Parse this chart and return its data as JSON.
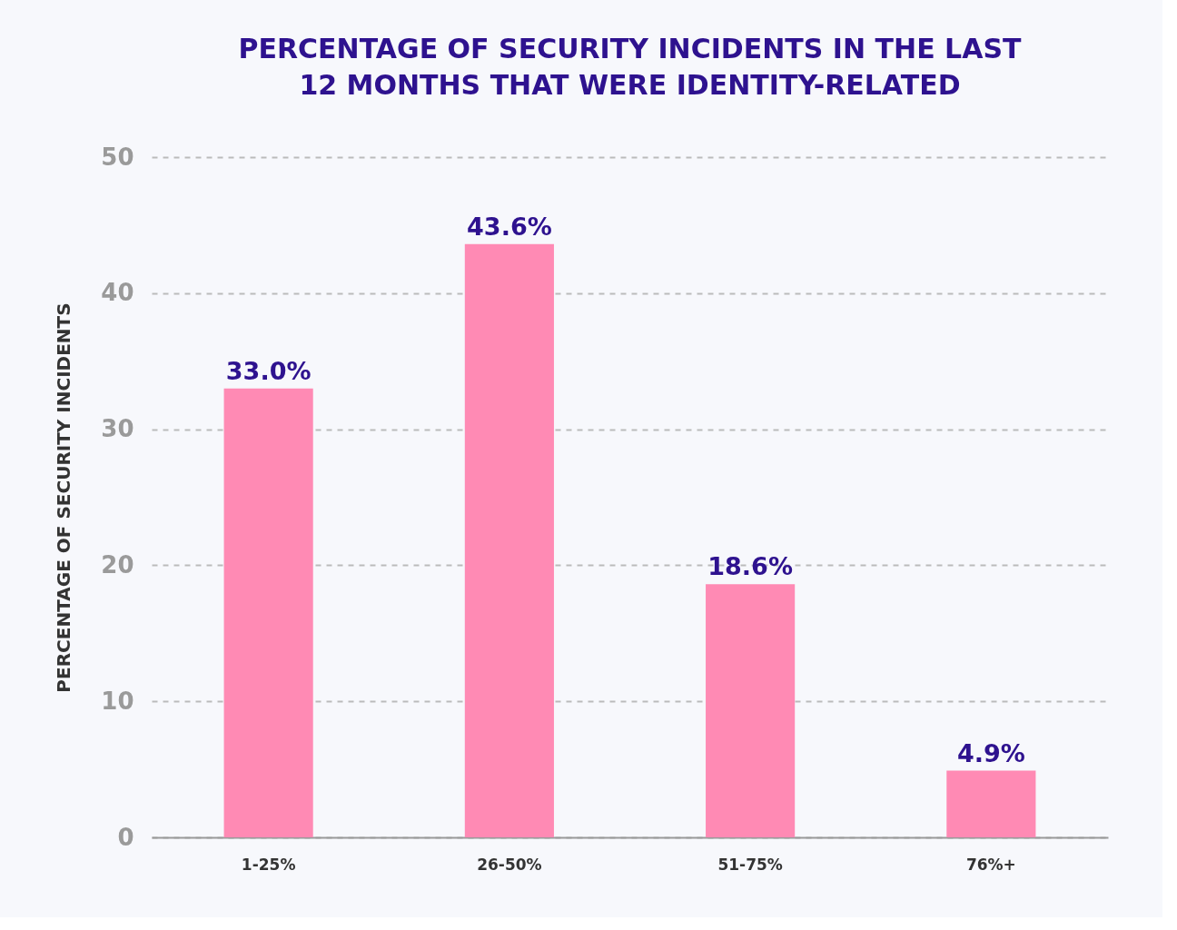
{
  "chart_data": {
    "type": "bar",
    "title": [
      "PERCENTAGE OF SECURITY INCIDENTS IN THE LAST",
      "12 MONTHS THAT WERE IDENTITY-RELATED"
    ],
    "ylabel": "PERCENTAGE OF SECURITY INCIDENTS",
    "categories": [
      "1-25%",
      "26-50%",
      "51-75%",
      "76%+"
    ],
    "values": [
      33.0,
      43.6,
      18.6,
      4.9
    ],
    "value_labels": [
      "33.0%",
      "43.6%",
      "18.6%",
      "4.9%"
    ],
    "color": "#ff8ab4",
    "ylim": [
      0,
      50
    ],
    "yticks": [
      0,
      10,
      20,
      30,
      40,
      50
    ],
    "grid": "y"
  }
}
